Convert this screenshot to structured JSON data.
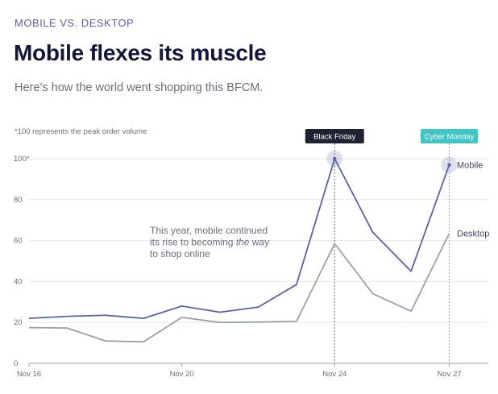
{
  "header": {
    "eyebrow": "MOBILE VS. DESKTOP",
    "title": "Mobile flexes its muscle",
    "subtitle": "Here’s how the world went shopping this BFCM."
  },
  "colors": {
    "mobile": "#5b63a8",
    "desktop": "#9aa1ad",
    "black_friday_tag": "#1f2233",
    "cyber_monday_tag": "#43c6c3",
    "grid": "#e6e7ec"
  },
  "chart_data": {
    "type": "line",
    "note": "*100 represents the peak order volume",
    "x": [
      "Nov 16",
      "Nov 17",
      "Nov 18",
      "Nov 19",
      "Nov 20",
      "Nov 21",
      "Nov 22",
      "Nov 23",
      "Nov 24",
      "Nov 25",
      "Nov 26",
      "Nov 27"
    ],
    "x_tick_labels": [
      "Nov 16",
      "Nov 20",
      "Nov 24",
      "Nov 27"
    ],
    "y_ticks": [
      "0",
      "20",
      "40",
      "60",
      "80",
      "100*"
    ],
    "ylim": [
      0,
      100
    ],
    "grid": true,
    "series": [
      {
        "name": "Mobile",
        "values": [
          22,
          23,
          23.5,
          22,
          28,
          25,
          27.5,
          38.5,
          100,
          64,
          45,
          97
        ]
      },
      {
        "name": "Desktop",
        "values": [
          17.5,
          17.3,
          11,
          10.5,
          22.5,
          20,
          20.2,
          20.5,
          58.5,
          34,
          25.5,
          63.5
        ]
      }
    ],
    "markers": [
      {
        "label": "Black Friday",
        "x": "Nov 24"
      },
      {
        "label": "Cyber Monday",
        "x": "Nov 27"
      }
    ],
    "annotation": {
      "line1": "This year, mobile continued",
      "line2_before": "its rise to becoming ",
      "line2_emph": "the",
      "line2_after": " way",
      "line3": "to shop online"
    }
  }
}
